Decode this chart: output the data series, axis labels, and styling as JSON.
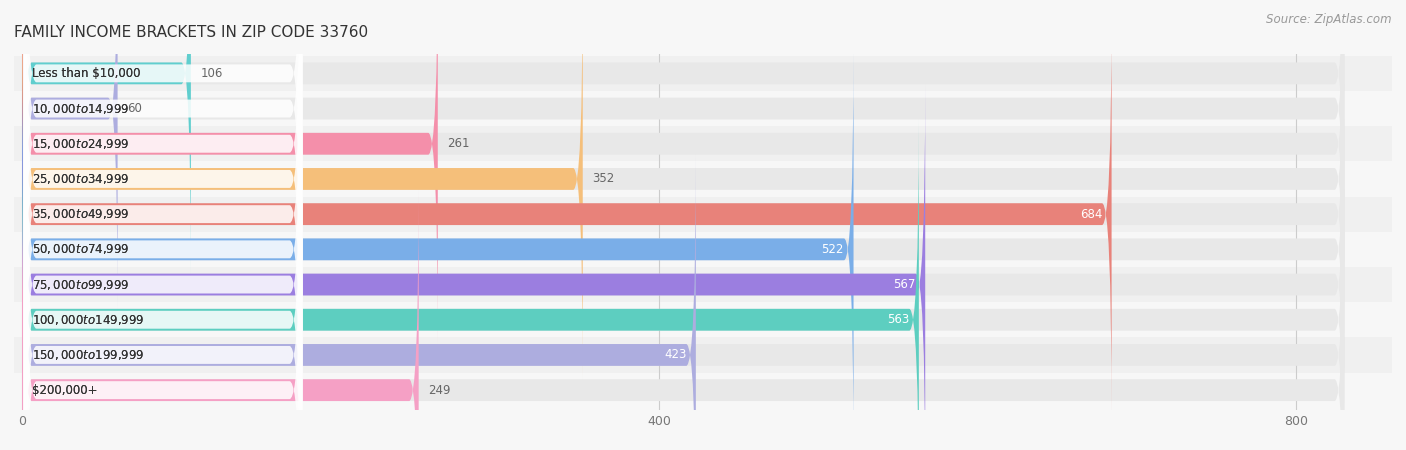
{
  "title": "FAMILY INCOME BRACKETS IN ZIP CODE 33760",
  "source": "Source: ZipAtlas.com",
  "categories": [
    "Less than $10,000",
    "$10,000 to $14,999",
    "$15,000 to $24,999",
    "$25,000 to $34,999",
    "$35,000 to $49,999",
    "$50,000 to $74,999",
    "$75,000 to $99,999",
    "$100,000 to $149,999",
    "$150,000 to $199,999",
    "$200,000+"
  ],
  "values": [
    106,
    60,
    261,
    352,
    684,
    522,
    567,
    563,
    423,
    249
  ],
  "bar_colors": [
    "#60CECE",
    "#ADADDF",
    "#F48FAA",
    "#F5BF7A",
    "#E8827A",
    "#7AAEE8",
    "#9B7EE0",
    "#5DCEC0",
    "#ADADDF",
    "#F5A0C5"
  ],
  "value_label_inside_color": "#ffffff",
  "value_label_outside_color": "#666666",
  "inside_threshold": 400,
  "xlim_min": -5,
  "xlim_max": 860,
  "xticks": [
    0,
    400,
    800
  ],
  "bg_color": "#f7f7f7",
  "bar_bg_color": "#e8e8e8",
  "title_fontsize": 11,
  "source_fontsize": 8.5,
  "label_fontsize": 8.5,
  "value_fontsize": 8.5
}
